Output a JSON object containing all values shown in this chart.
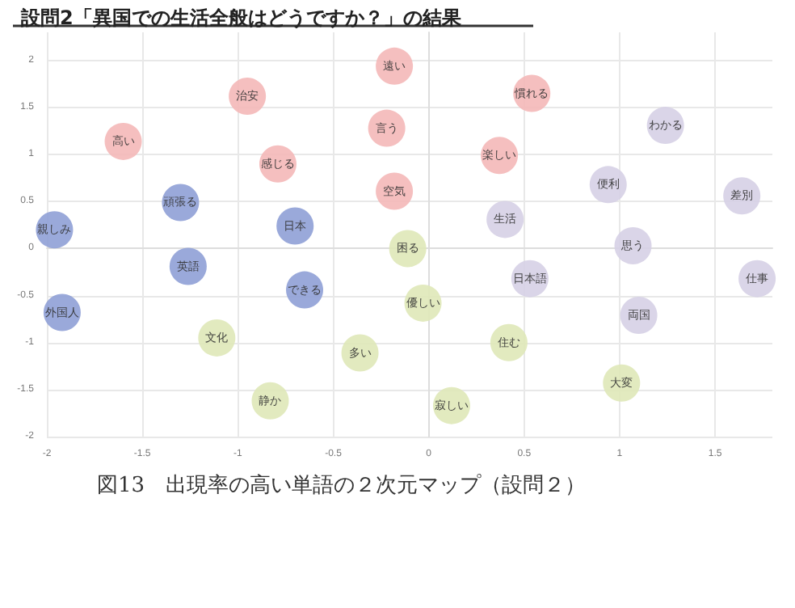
{
  "chart_data": {
    "type": "scatter",
    "title": "設問2「異国での生活全般はどうですか？」の結果",
    "annotations": [
      "図13　出現率の高い単語の２次元マップ（設問２）"
    ],
    "xlim": [
      -2,
      1.8
    ],
    "xticks": [
      -2,
      -1.5,
      -1,
      -0.5,
      0,
      0.5,
      1,
      1.5
    ],
    "ylim": [
      -2,
      2.3
    ],
    "yticks": [
      -2,
      -1.5,
      -1,
      -0.5,
      0,
      0.5,
      1,
      1.5,
      2
    ],
    "grid": true,
    "marker": "circle",
    "series": [
      {
        "color": "#f4b8b8",
        "x": [
          -0.18,
          -0.95,
          0.54,
          -1.6,
          -0.22,
          -0.79,
          0.37,
          -0.18
        ],
        "values": [
          1.94,
          1.62,
          1.65,
          1.14,
          1.28,
          0.9,
          0.99,
          0.61
        ],
        "value_labels": [
          "遠い",
          "治安",
          "慣れる",
          "高い",
          "言う",
          "感じる",
          "楽しい",
          "空気"
        ]
      },
      {
        "color": "#d6d0e6",
        "x": [
          1.24,
          0.94,
          1.64,
          0.4,
          1.07,
          0.53,
          1.72,
          1.1
        ],
        "values": [
          1.31,
          0.68,
          0.56,
          0.31,
          0.03,
          -0.32,
          -0.32,
          -0.71
        ],
        "value_labels": [
          "わかる",
          "便利",
          "差別",
          "生活",
          "思う",
          "日本語",
          "仕事",
          "両国"
        ]
      },
      {
        "color": "#8fa0d6",
        "x": [
          -1.96,
          -1.3,
          -0.7,
          -1.26,
          -1.92,
          -0.65
        ],
        "values": [
          0.2,
          0.49,
          0.24,
          -0.19,
          -0.68,
          -0.44
        ],
        "value_labels": [
          "親しみ",
          "頑張る",
          "日本",
          "英語",
          "外国人",
          "できる"
        ]
      },
      {
        "color": "#dfe8b8",
        "x": [
          -0.11,
          -0.03,
          -1.11,
          -0.36,
          0.42,
          -0.83,
          0.12,
          1.01
        ],
        "values": [
          0,
          -0.58,
          -0.95,
          -1.11,
          -1,
          -1.62,
          -1.67,
          -1.43
        ],
        "value_labels": [
          "困る",
          "優しい",
          "文化",
          "多い",
          "住む",
          "静か",
          "寂しい",
          "大変"
        ]
      }
    ]
  }
}
